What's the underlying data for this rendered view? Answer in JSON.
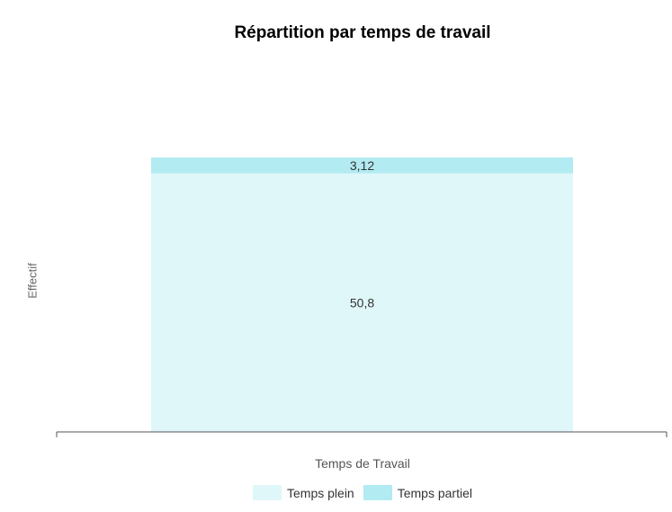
{
  "chart_data": {
    "type": "bar",
    "stacked": true,
    "title": "Répartition par temps de travail",
    "xlabel": "Temps de Travail",
    "ylabel": "Effectif",
    "categories": [
      ""
    ],
    "series": [
      {
        "name": "Temps plein",
        "values": [
          50.8
        ],
        "labels": [
          "50,8"
        ],
        "color": "#e0f7fa"
      },
      {
        "name": "Temps partiel",
        "values": [
          3.12
        ],
        "labels": [
          "3,12"
        ],
        "color": "#b2ebf2"
      }
    ],
    "ylim": [
      0,
      53.92
    ],
    "grid": false,
    "legend": "bottom"
  }
}
